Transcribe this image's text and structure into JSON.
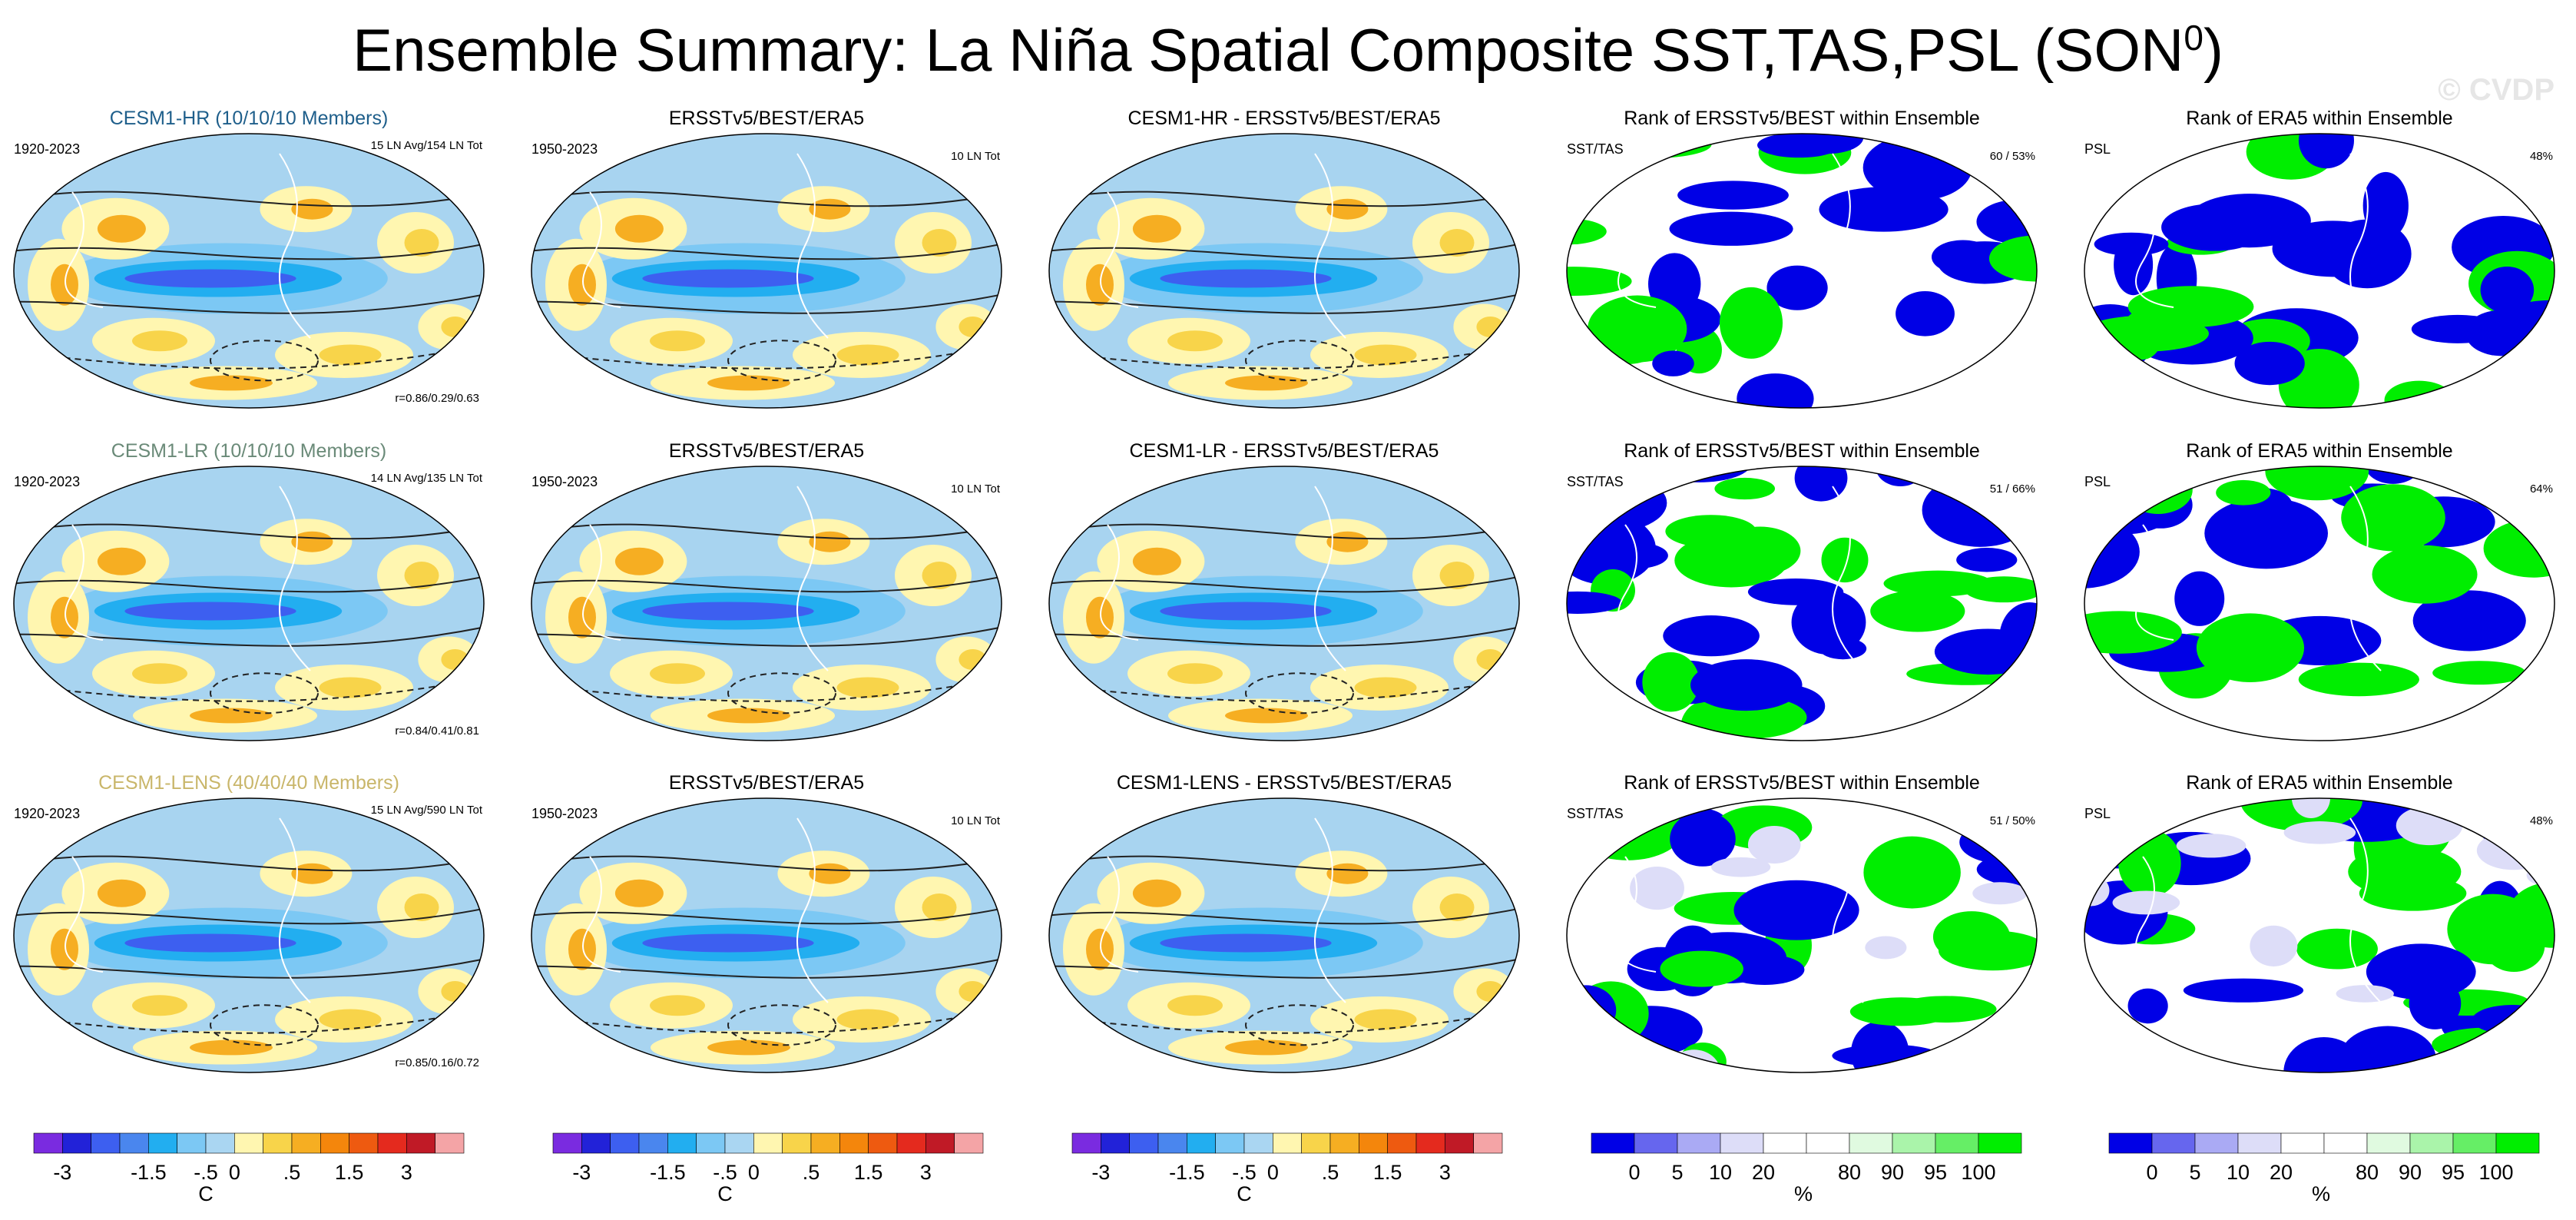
{
  "figure": {
    "title_main": "Ensemble Summary: La Niña Spatial Composite SST,TAS,PSL (SON",
    "title_sup": "0",
    "title_close": ")",
    "watermark": "© CVDP"
  },
  "colors": {
    "ocean_fill": "#a8d4f0",
    "land_line": "#ffffff",
    "contour": "#222222",
    "model_hr_title": "#1f5f8b",
    "model_lr_title": "#6a8a78",
    "model_lens_title": "#c9b66a",
    "rank_blue": "#0000e6",
    "rank_green": "#00ee00"
  },
  "chart_data": [
    {
      "type": "heatmap",
      "row": 1,
      "col": 1,
      "title": "CESM1-HR (10/10/10 Members)",
      "title_color": "#1f5f8b",
      "left_label": "1920-2023",
      "right_label": "15 LN Avg/154 LN Tot",
      "bottom_label": "r=0.86/0.29/0.63",
      "variables": [
        "SST",
        "TAS",
        "PSL"
      ],
      "units": "C"
    },
    {
      "type": "heatmap",
      "row": 1,
      "col": 2,
      "title": "ERSSTv5/BEST/ERA5",
      "title_color": "#000000",
      "left_label": "1950-2023",
      "right_label": "10 LN Tot",
      "bottom_label": "",
      "variables": [
        "SST",
        "TAS",
        "PSL"
      ],
      "units": "C"
    },
    {
      "type": "heatmap",
      "row": 1,
      "col": 3,
      "title": "CESM1-HR - ERSSTv5/BEST/ERA5",
      "title_color": "#000000",
      "left_label": "",
      "right_label": "",
      "bottom_label": "",
      "variables": [
        "SST",
        "TAS",
        "PSL"
      ],
      "units": "C"
    },
    {
      "type": "heatmap",
      "row": 1,
      "col": 4,
      "title": "Rank of ERSSTv5/BEST within Ensemble",
      "title_color": "#000000",
      "left_label": "SST/TAS",
      "right_label": "60 / 53%",
      "bottom_label": "",
      "units": "%"
    },
    {
      "type": "heatmap",
      "row": 1,
      "col": 5,
      "title": "Rank of ERA5 within Ensemble",
      "title_color": "#000000",
      "left_label": "PSL",
      "right_label": "48%",
      "bottom_label": "",
      "units": "%"
    },
    {
      "type": "heatmap",
      "row": 2,
      "col": 1,
      "title": "CESM1-LR (10/10/10 Members)",
      "title_color": "#6a8a78",
      "left_label": "1920-2023",
      "right_label": "14 LN Avg/135 LN Tot",
      "bottom_label": "r=0.84/0.41/0.81",
      "variables": [
        "SST",
        "TAS",
        "PSL"
      ],
      "units": "C"
    },
    {
      "type": "heatmap",
      "row": 2,
      "col": 2,
      "title": "ERSSTv5/BEST/ERA5",
      "title_color": "#000000",
      "left_label": "1950-2023",
      "right_label": "10 LN Tot",
      "bottom_label": "",
      "variables": [
        "SST",
        "TAS",
        "PSL"
      ],
      "units": "C"
    },
    {
      "type": "heatmap",
      "row": 2,
      "col": 3,
      "title": "CESM1-LR - ERSSTv5/BEST/ERA5",
      "title_color": "#000000",
      "left_label": "",
      "right_label": "",
      "bottom_label": "",
      "variables": [
        "SST",
        "TAS",
        "PSL"
      ],
      "units": "C"
    },
    {
      "type": "heatmap",
      "row": 2,
      "col": 4,
      "title": "Rank of ERSSTv5/BEST within Ensemble",
      "title_color": "#000000",
      "left_label": "SST/TAS",
      "right_label": "51 / 66%",
      "bottom_label": "",
      "units": "%"
    },
    {
      "type": "heatmap",
      "row": 2,
      "col": 5,
      "title": "Rank of ERA5 within Ensemble",
      "title_color": "#000000",
      "left_label": "PSL",
      "right_label": "64%",
      "bottom_label": "",
      "units": "%"
    },
    {
      "type": "heatmap",
      "row": 3,
      "col": 1,
      "title": "CESM1-LENS (40/40/40 Members)",
      "title_color": "#c9b66a",
      "left_label": "1920-2023",
      "right_label": "15 LN Avg/590 LN Tot",
      "bottom_label": "r=0.85/0.16/0.72",
      "variables": [
        "SST",
        "TAS",
        "PSL"
      ],
      "units": "C"
    },
    {
      "type": "heatmap",
      "row": 3,
      "col": 2,
      "title": "ERSSTv5/BEST/ERA5",
      "title_color": "#000000",
      "left_label": "1950-2023",
      "right_label": "10 LN Tot",
      "bottom_label": "",
      "variables": [
        "SST",
        "TAS",
        "PSL"
      ],
      "units": "C"
    },
    {
      "type": "heatmap",
      "row": 3,
      "col": 3,
      "title": "CESM1-LENS - ERSSTv5/BEST/ERA5",
      "title_color": "#000000",
      "left_label": "",
      "right_label": "",
      "bottom_label": "",
      "variables": [
        "SST",
        "TAS",
        "PSL"
      ],
      "units": "C"
    },
    {
      "type": "heatmap",
      "row": 3,
      "col": 4,
      "title": "Rank of ERSSTv5/BEST within Ensemble",
      "title_color": "#000000",
      "left_label": "SST/TAS",
      "right_label": "51 / 50%",
      "bottom_label": "",
      "units": "%"
    },
    {
      "type": "heatmap",
      "row": 3,
      "col": 5,
      "title": "Rank of ERA5 within Ensemble",
      "title_color": "#000000",
      "left_label": "PSL",
      "right_label": "48%",
      "bottom_label": "",
      "units": "%"
    }
  ],
  "colorbars": {
    "anomaly": {
      "colors": [
        "#7a2be0",
        "#2222d8",
        "#3d5ff0",
        "#4a86ee",
        "#22aef0",
        "#7cc8f4",
        "#aad6f2",
        "#fff6b0",
        "#f8d44a",
        "#f6ae22",
        "#f4860c",
        "#ee5a10",
        "#e42a1e",
        "#c01a26",
        "#f4a4a6"
      ],
      "ticks": [
        "-3",
        "-1.5",
        "-.5",
        "0",
        ".5",
        "1.5",
        "3"
      ],
      "tick_bounds": [
        1,
        4,
        6,
        7,
        9,
        11,
        13
      ],
      "label": "C"
    },
    "rank": {
      "colors": [
        "#0000e6",
        "#6666ee",
        "#aaaaf4",
        "#ddddf8",
        "#ffffff",
        "#ffffff",
        "#e0fae0",
        "#aaf4aa",
        "#66ee66",
        "#00ee00"
      ],
      "ticks": [
        "0",
        "5",
        "10",
        "20",
        "80",
        "90",
        "95",
        "100"
      ],
      "tick_bounds": [
        1,
        2,
        3,
        4,
        6,
        7,
        8,
        9
      ],
      "label": "%"
    }
  }
}
